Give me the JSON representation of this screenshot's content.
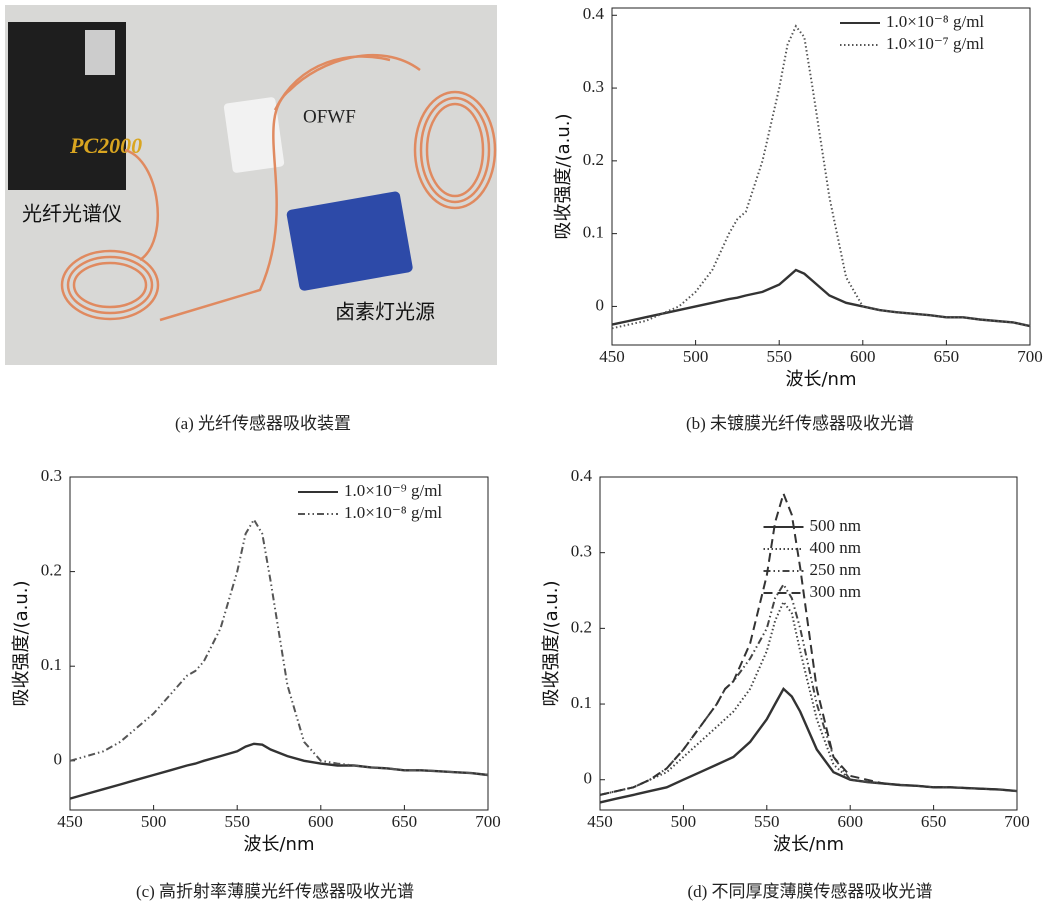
{
  "photo": {
    "labels": [
      "光纤光谱仪",
      "OFWF",
      "卤素灯光源"
    ],
    "brand": "PC2000",
    "caption": "(a) 光纤传感器吸收装置"
  },
  "chart_data": [
    {
      "type": "line",
      "caption": "(b) 未镀膜光纤传感器吸收光谱",
      "xlabel": "波长/nm",
      "ylabel": "吸收强度/(a.u.)",
      "x": [
        450,
        460,
        470,
        480,
        490,
        500,
        510,
        520,
        525,
        530,
        540,
        550,
        555,
        560,
        565,
        570,
        580,
        590,
        600,
        610,
        620,
        630,
        640,
        650,
        660,
        670,
        680,
        690,
        700
      ],
      "series": [
        {
          "name": "1.0×10⁻⁸ g/ml",
          "color": "#333333",
          "dash": "solid",
          "values": [
            -0.025,
            -0.02,
            -0.015,
            -0.01,
            -0.005,
            0,
            0.005,
            0.01,
            0.012,
            0.015,
            0.02,
            0.03,
            0.04,
            0.05,
            0.045,
            0.035,
            0.015,
            0.005,
            0,
            -0.005,
            -0.008,
            -0.01,
            -0.012,
            -0.015,
            -0.015,
            -0.018,
            -0.02,
            -0.022,
            -0.027
          ]
        },
        {
          "name": "1.0×10⁻⁷ g/ml",
          "color": "#555555",
          "dash": "dotted",
          "values": [
            -0.03,
            -0.025,
            -0.02,
            -0.01,
            0,
            0.02,
            0.05,
            0.1,
            0.12,
            0.13,
            0.2,
            0.3,
            0.36,
            0.385,
            0.37,
            0.3,
            0.15,
            0.04,
            0,
            -0.005,
            -0.008,
            -0.01,
            -0.012,
            -0.015,
            -0.015,
            -0.018,
            -0.02,
            -0.022,
            -0.027
          ]
        }
      ],
      "xlim": [
        450,
        700
      ],
      "xticks": [
        450,
        500,
        550,
        600,
        650,
        700
      ],
      "ylim": [
        -0.053,
        0.41
      ],
      "yticks": [
        0,
        0.1,
        0.2,
        0.3,
        0.4
      ],
      "legend": "upper right"
    },
    {
      "type": "line",
      "caption": "(c) 高折射率薄膜光纤传感器吸收光谱",
      "xlabel": "波长/nm",
      "ylabel": "吸收强度/(a.u.)",
      "x": [
        450,
        460,
        470,
        480,
        490,
        500,
        510,
        520,
        525,
        530,
        540,
        550,
        555,
        560,
        565,
        570,
        580,
        590,
        600,
        610,
        620,
        630,
        640,
        650,
        660,
        670,
        680,
        690,
        700
      ],
      "series": [
        {
          "name": "1.0×10⁻⁹ g/ml",
          "color": "#333333",
          "dash": "solid",
          "values": [
            -0.04,
            -0.035,
            -0.03,
            -0.025,
            -0.02,
            -0.015,
            -0.01,
            -0.005,
            -0.003,
            0,
            0.005,
            0.01,
            0.015,
            0.018,
            0.017,
            0.012,
            0.005,
            0,
            -0.003,
            -0.005,
            -0.005,
            -0.007,
            -0.008,
            -0.01,
            -0.01,
            -0.011,
            -0.012,
            -0.013,
            -0.015
          ]
        },
        {
          "name": "1.0×10⁻⁸ g/ml",
          "color": "#555555",
          "dash": "dashdotdot",
          "values": [
            0,
            0.005,
            0.01,
            0.02,
            0.035,
            0.05,
            0.07,
            0.09,
            0.095,
            0.105,
            0.14,
            0.2,
            0.24,
            0.255,
            0.24,
            0.19,
            0.08,
            0.02,
            0,
            -0.003,
            -0.005,
            -0.007,
            -0.008,
            -0.01,
            -0.01,
            -0.011,
            -0.012,
            -0.013,
            -0.015
          ]
        }
      ],
      "xlim": [
        450,
        700
      ],
      "xticks": [
        450,
        500,
        550,
        600,
        650,
        700
      ],
      "ylim": [
        -0.052,
        0.3
      ],
      "yticks": [
        0,
        0.1,
        0.2,
        0.3
      ],
      "legend": "upper right"
    },
    {
      "type": "line",
      "caption": "(d) 不同厚度薄膜传感器吸收光谱",
      "xlabel": "波长/nm",
      "ylabel": "吸收强度/(a.u.)",
      "x": [
        450,
        460,
        470,
        480,
        490,
        500,
        510,
        520,
        525,
        530,
        540,
        550,
        555,
        560,
        565,
        570,
        580,
        590,
        600,
        610,
        620,
        630,
        640,
        650,
        660,
        670,
        680,
        690,
        700
      ],
      "series": [
        {
          "name": "500 nm",
          "color": "#333333",
          "dash": "solid",
          "values": [
            -0.03,
            -0.025,
            -0.02,
            -0.015,
            -0.01,
            0,
            0.01,
            0.02,
            0.025,
            0.03,
            0.05,
            0.08,
            0.1,
            0.12,
            0.11,
            0.09,
            0.04,
            0.01,
            0,
            -0.003,
            -0.005,
            -0.007,
            -0.008,
            -0.01,
            -0.01,
            -0.011,
            -0.012,
            -0.013,
            -0.015
          ]
        },
        {
          "name": "400 nm",
          "color": "#444444",
          "dash": "dotted",
          "values": [
            -0.02,
            -0.015,
            -0.01,
            0,
            0.01,
            0.03,
            0.05,
            0.07,
            0.08,
            0.09,
            0.12,
            0.17,
            0.21,
            0.235,
            0.22,
            0.17,
            0.08,
            0.02,
            0,
            -0.003,
            -0.005,
            -0.007,
            -0.008,
            -0.01,
            -0.01,
            -0.011,
            -0.012,
            -0.013,
            -0.015
          ]
        },
        {
          "name": "250 nm",
          "color": "#444444",
          "dash": "dashdotdot",
          "values": [
            -0.02,
            -0.015,
            -0.01,
            0,
            0.015,
            0.04,
            0.07,
            0.1,
            0.12,
            0.13,
            0.16,
            0.2,
            0.24,
            0.258,
            0.24,
            0.2,
            0.1,
            0.03,
            0,
            -0.003,
            -0.005,
            -0.007,
            -0.008,
            -0.01,
            -0.01,
            -0.011,
            -0.012,
            -0.013,
            -0.015
          ]
        },
        {
          "name": "300 nm",
          "color": "#333333",
          "dash": "dashed",
          "values": [
            -0.02,
            -0.015,
            -0.01,
            0,
            0.015,
            0.04,
            0.07,
            0.1,
            0.12,
            0.13,
            0.18,
            0.27,
            0.34,
            0.378,
            0.35,
            0.28,
            0.12,
            0.03,
            0.005,
            0,
            -0.005,
            -0.007,
            -0.008,
            -0.01,
            -0.01,
            -0.011,
            -0.012,
            -0.013,
            -0.015
          ]
        }
      ],
      "xlim": [
        450,
        700
      ],
      "xticks": [
        450,
        500,
        550,
        600,
        650,
        700
      ],
      "ylim": [
        -0.04,
        0.4
      ],
      "yticks": [
        0,
        0.1,
        0.2,
        0.3,
        0.4
      ],
      "legend": "upper center"
    }
  ]
}
